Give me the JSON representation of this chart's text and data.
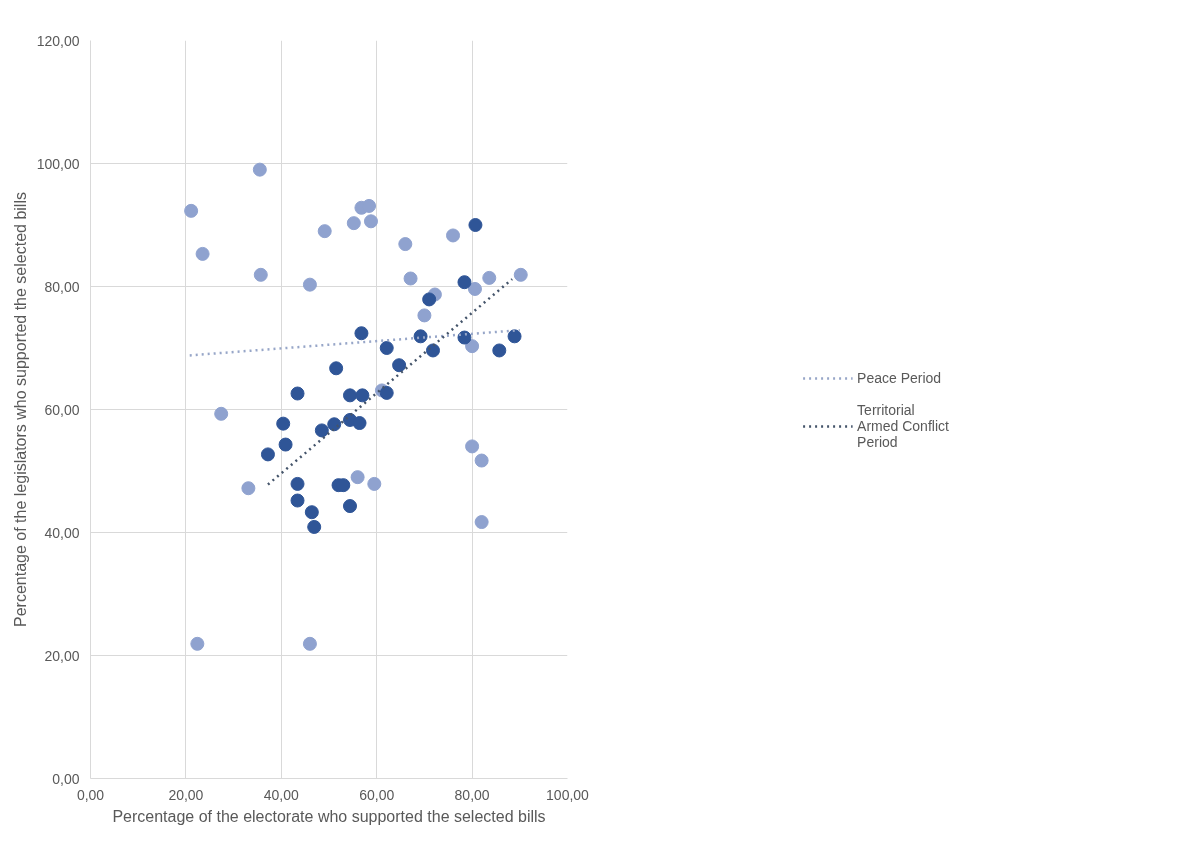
{
  "chart_data": {
    "type": "scatter",
    "xlabel": "Percentage of the electorate who supported the selected bills",
    "ylabel": "Percentage of the legislators who supported the selected bills",
    "xlim": [
      0,
      100
    ],
    "ylim": [
      0,
      120
    ],
    "xticks": [
      {
        "value": 0,
        "label": "0,00"
      },
      {
        "value": 20,
        "label": "20,00"
      },
      {
        "value": 40,
        "label": "40,00"
      },
      {
        "value": 60,
        "label": "60,00"
      },
      {
        "value": 80,
        "label": "80,00"
      },
      {
        "value": 100,
        "label": "100,00"
      }
    ],
    "yticks": [
      {
        "value": 0,
        "label": "0,00"
      },
      {
        "value": 20,
        "label": "20,00"
      },
      {
        "value": 40,
        "label": "40,00"
      },
      {
        "value": 60,
        "label": "60,00"
      },
      {
        "value": 80,
        "label": "80,00"
      },
      {
        "value": 100,
        "label": "100,00"
      },
      {
        "value": 120,
        "label": "120,00"
      }
    ],
    "grid": true,
    "legend": "right",
    "marker": "circle",
    "series": [
      {
        "color": "#8fa2cf",
        "x": [
          35.5,
          21.1,
          23.5,
          35.7,
          49.1,
          46.0,
          55.2,
          56.8,
          58.4,
          58.8,
          27.4,
          33.1,
          56.0,
          59.5,
          22.4,
          46.0,
          66.0,
          67.1,
          76.0,
          72.2,
          70.0,
          80.6,
          83.6,
          90.2,
          80.0,
          61.1,
          80.0,
          82.0,
          82.0
        ],
        "values": [
          99.0,
          92.3,
          85.3,
          81.9,
          89.0,
          80.3,
          90.3,
          92.8,
          93.1,
          90.6,
          59.3,
          47.2,
          49.0,
          47.9,
          21.9,
          21.9,
          86.9,
          81.3,
          88.3,
          78.7,
          75.3,
          79.6,
          81.4,
          81.9,
          70.3,
          63.1,
          54.0,
          51.7,
          41.7
        ]
      },
      {
        "color": "#2f5597",
        "x": [
          56.8,
          51.5,
          43.4,
          54.4,
          57.0,
          40.4,
          40.9,
          37.2,
          48.5,
          51.1,
          54.4,
          56.4,
          43.4,
          43.4,
          52.0,
          53.0,
          54.4,
          46.4,
          46.9,
          80.7,
          78.4,
          71.0,
          69.2,
          62.1,
          64.7,
          71.8,
          78.4,
          85.7,
          88.9,
          62.1
        ],
        "values": [
          72.4,
          66.7,
          62.6,
          62.3,
          62.3,
          57.7,
          54.3,
          52.7,
          56.6,
          57.6,
          58.3,
          57.8,
          47.9,
          45.2,
          47.7,
          47.7,
          44.3,
          43.3,
          40.9,
          90.0,
          80.7,
          77.9,
          71.9,
          70.0,
          67.2,
          69.6,
          71.7,
          69.6,
          71.9,
          62.7
        ]
      },
      {
        "type": "line",
        "name": "Peace Period",
        "color": "#97a6c8",
        "line_style": "dotted",
        "marker": "none",
        "x": [
          20.8,
          90.0
        ],
        "values": [
          68.8,
          72.9
        ]
      },
      {
        "type": "line",
        "name": "Territorial Armed Conflict Period",
        "color": "#44546a",
        "line_style": "dotted",
        "marker": "none",
        "x": [
          37.2,
          88.4
        ],
        "values": [
          47.8,
          81.2
        ]
      }
    ]
  }
}
